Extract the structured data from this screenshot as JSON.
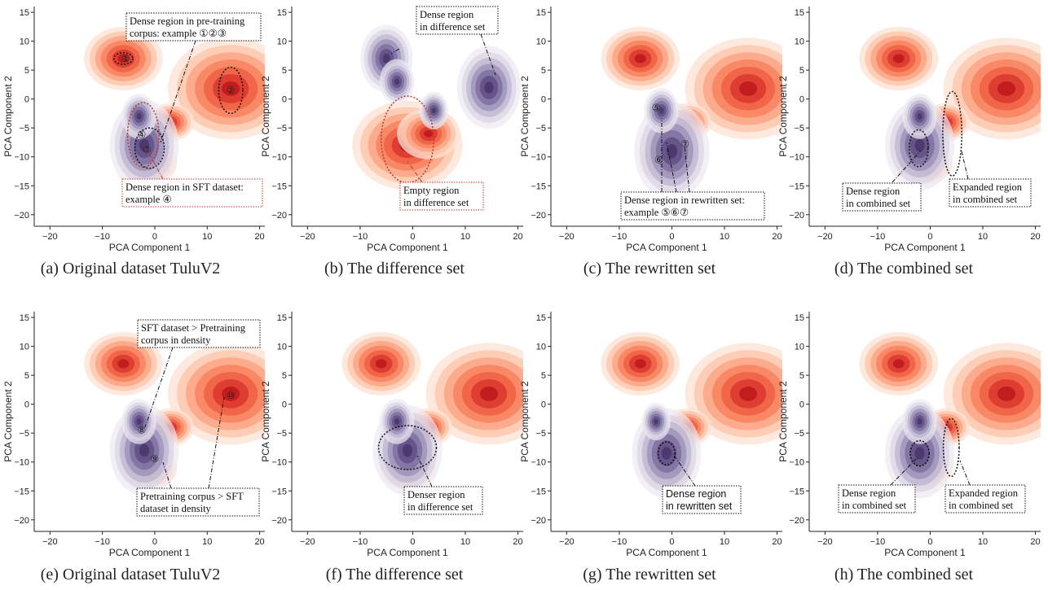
{
  "chart_data": [
    {
      "id": "a",
      "type": "contour",
      "caption": "(a) Original dataset TuluV2",
      "xlabel": "PCA Component 1",
      "ylabel": "PCA Component 2",
      "xlim": [
        -23,
        21
      ],
      "ylim": [
        -22,
        16
      ],
      "xticks": [
        -20,
        -10,
        0,
        10,
        20
      ],
      "yticks": [
        -20,
        -15,
        -10,
        -5,
        0,
        5,
        10,
        15
      ],
      "red_peaks": [
        [
          -6,
          7,
          1.0
        ],
        [
          14.5,
          1.8,
          1.6
        ],
        [
          3,
          -4,
          0.6
        ],
        [
          -1,
          -11,
          0.7
        ]
      ],
      "purple_peaks": [
        [
          -2,
          -8,
          1.2
        ],
        [
          -3,
          -3,
          0.6
        ]
      ],
      "markers": [
        {
          "label": "①",
          "x": -5.5,
          "y": 7
        },
        {
          "label": "②",
          "x": 14.5,
          "y": 1.5
        },
        {
          "label": "③",
          "x": -1.5,
          "y": -8.8
        },
        {
          "label": "④",
          "x": -2.5,
          "y": -6.2
        }
      ],
      "annotations": [
        {
          "lines": [
            "Dense region in pre-training",
            "corpus: example ①②③"
          ],
          "style": "dotted-black"
        },
        {
          "lines": [
            "Dense region in SFT dataset:",
            "example ④"
          ],
          "style": "dotted-red"
        }
      ]
    },
    {
      "id": "b",
      "type": "contour",
      "caption": "(b) The difference set",
      "xlabel": "PCA Component 1",
      "ylabel": "PCA Component 2",
      "xlim": [
        -23,
        21
      ],
      "ylim": [
        -22,
        16
      ],
      "xticks": [
        -20,
        -10,
        0,
        10,
        20
      ],
      "yticks": [
        -20,
        -15,
        -10,
        -5,
        0,
        5,
        10,
        15
      ],
      "red_peaks": [
        [
          -1,
          -8,
          1.4
        ],
        [
          3,
          -6,
          0.8
        ]
      ],
      "purple_peaks": [
        [
          -5,
          7,
          0.9
        ],
        [
          14.5,
          2,
          1.1
        ],
        [
          -3,
          3,
          0.6
        ],
        [
          4,
          -2,
          0.5
        ]
      ],
      "markers": [],
      "annotations": [
        {
          "lines": [
            "Dense region",
            "in difference set"
          ],
          "style": "dotted-black"
        },
        {
          "lines": [
            "Empty region",
            "in difference set"
          ],
          "style": "dotted-red"
        }
      ]
    },
    {
      "id": "c",
      "type": "contour",
      "caption": "(c) The rewritten set",
      "xlabel": "PCA Component 1",
      "ylabel": "PCA Component 2",
      "xlim": [
        -23,
        21
      ],
      "ylim": [
        -22,
        16
      ],
      "xticks": [
        -20,
        -10,
        0,
        10,
        20
      ],
      "yticks": [
        -20,
        -15,
        -10,
        -5,
        0,
        5,
        10,
        15
      ],
      "red_peaks": [
        [
          -6,
          7,
          1.0
        ],
        [
          14.5,
          1.8,
          1.6
        ],
        [
          3,
          -4,
          0.6
        ],
        [
          -1,
          -11,
          0.7
        ]
      ],
      "purple_peaks": [
        [
          0,
          -9,
          1.3
        ],
        [
          -2,
          -2,
          0.6
        ]
      ],
      "markers": [
        {
          "label": "⑤",
          "x": -3,
          "y": -1.5
        },
        {
          "label": "⑥",
          "x": -2.5,
          "y": -10.5
        },
        {
          "label": "⑦",
          "x": 2.5,
          "y": -7.8
        }
      ],
      "annotations": [
        {
          "lines": [
            "Dense region in rewritten set:",
            "example ⑤⑥⑦"
          ],
          "style": "dotted-black"
        }
      ]
    },
    {
      "id": "d",
      "type": "contour",
      "caption": "(d) The combined set",
      "xlabel": "PCA Component 1",
      "ylabel": "PCA Component 2",
      "xlim": [
        -23,
        21
      ],
      "ylim": [
        -22,
        16
      ],
      "xticks": [
        -20,
        -10,
        0,
        10,
        20
      ],
      "yticks": [
        -20,
        -15,
        -10,
        -5,
        0,
        5,
        10,
        15
      ],
      "red_peaks": [
        [
          -6,
          7,
          1.0
        ],
        [
          14.5,
          1.8,
          1.6
        ],
        [
          3,
          -4,
          0.6
        ],
        [
          -1,
          -11,
          0.7
        ]
      ],
      "purple_peaks": [
        [
          -2,
          -8,
          1.2
        ],
        [
          -2,
          -3,
          0.6
        ]
      ],
      "markers": [],
      "annotations": [
        {
          "lines": [
            "Dense region",
            "in combined set"
          ],
          "style": "dotted-black"
        },
        {
          "lines": [
            "Expanded region",
            "in combined set"
          ],
          "style": "dotted-black"
        }
      ]
    },
    {
      "id": "e",
      "type": "contour",
      "caption": "(e) Original dataset TuluV2",
      "xlabel": "PCA Component 1",
      "ylabel": "PCA Component 2",
      "xlim": [
        -23,
        21
      ],
      "ylim": [
        -22,
        16
      ],
      "xticks": [
        -20,
        -10,
        0,
        10,
        20
      ],
      "yticks": [
        -20,
        -15,
        -10,
        -5,
        0,
        5,
        10,
        15
      ],
      "red_peaks": [
        [
          -6,
          7,
          1.0
        ],
        [
          14.5,
          1.8,
          1.6
        ],
        [
          3,
          -4,
          0.6
        ],
        [
          -1,
          -11,
          0.7
        ]
      ],
      "purple_peaks": [
        [
          -2,
          -8,
          1.2
        ],
        [
          -3,
          -3,
          0.6
        ]
      ],
      "markers": [
        {
          "label": "⑧",
          "x": -2.5,
          "y": -4.5
        },
        {
          "label": "⑨",
          "x": 0,
          "y": -9.5
        },
        {
          "label": "⑩",
          "x": 14.5,
          "y": 1.5
        }
      ],
      "annotations": [
        {
          "lines": [
            "SFT dataset > Pretraining",
            "corpus in density"
          ],
          "style": "dotted-black"
        },
        {
          "lines": [
            "Pretraining corpus > SFT",
            "dataset in density"
          ],
          "style": "dotted-black"
        }
      ]
    },
    {
      "id": "f",
      "type": "contour",
      "caption": "(f) The difference set",
      "xlabel": "PCA Component 1",
      "ylabel": "PCA Component 2",
      "xlim": [
        -23,
        21
      ],
      "ylim": [
        -22,
        16
      ],
      "xticks": [
        -20,
        -10,
        0,
        10,
        20
      ],
      "yticks": [
        -20,
        -15,
        -10,
        -5,
        0,
        5,
        10,
        15
      ],
      "red_peaks": [
        [
          -6,
          7,
          1.0
        ],
        [
          14.5,
          1.8,
          1.6
        ],
        [
          3,
          -4,
          0.6
        ],
        [
          -1,
          -11,
          0.7
        ]
      ],
      "purple_peaks": [
        [
          -1,
          -8,
          1.2
        ],
        [
          -3,
          -3,
          0.6
        ]
      ],
      "markers": [],
      "annotations": [
        {
          "lines": [
            "Denser region",
            "in difference set"
          ],
          "style": "dotted-black"
        }
      ]
    },
    {
      "id": "g",
      "type": "contour",
      "caption": "(g) The rewritten set",
      "xlabel": "PCA Component 1",
      "ylabel": "PCA Component 2",
      "xlim": [
        -23,
        21
      ],
      "ylim": [
        -22,
        16
      ],
      "xticks": [
        -20,
        -10,
        0,
        10,
        20
      ],
      "yticks": [
        -20,
        -15,
        -10,
        -5,
        0,
        5,
        10,
        15
      ],
      "red_peaks": [
        [
          -6,
          7,
          1.0
        ],
        [
          14.5,
          1.8,
          1.6
        ],
        [
          3,
          -4,
          0.6
        ],
        [
          -1,
          -11,
          0.7
        ]
      ],
      "purple_peaks": [
        [
          -1,
          -8.5,
          1.2
        ],
        [
          -3,
          -3,
          0.5
        ]
      ],
      "markers": [],
      "annotations": [
        {
          "lines": [
            "Dense region",
            "in rewritten set"
          ],
          "style": "dotted-black-sans"
        }
      ]
    },
    {
      "id": "h",
      "type": "contour",
      "caption": "(h) The combined set",
      "xlabel": "PCA Component 1",
      "ylabel": "PCA Component 2",
      "xlim": [
        -23,
        21
      ],
      "ylim": [
        -22,
        16
      ],
      "xticks": [
        -20,
        -10,
        0,
        10,
        20
      ],
      "yticks": [
        -20,
        -15,
        -10,
        -5,
        0,
        5,
        10,
        15
      ],
      "red_peaks": [
        [
          -6,
          7,
          1.0
        ],
        [
          14.5,
          1.8,
          1.6
        ],
        [
          3,
          -4,
          0.6
        ],
        [
          -1,
          -11,
          0.7
        ]
      ],
      "purple_peaks": [
        [
          -2,
          -8.5,
          1.2
        ],
        [
          -2,
          -3,
          0.6
        ]
      ],
      "markers": [],
      "annotations": [
        {
          "lines": [
            "Dense region",
            "in combined set"
          ],
          "style": "dotted-black"
        },
        {
          "lines": [
            "Expanded region",
            "in combined set"
          ],
          "style": "dotted-black"
        }
      ]
    }
  ],
  "colors": {
    "red_scale": [
      "#fde2d3",
      "#fcc3a8",
      "#fba07e",
      "#f87d5a",
      "#ee5a3f",
      "#d7322a",
      "#b71318"
    ],
    "purple_scale": [
      "#eceaf2",
      "#d8d4e4",
      "#b9b2cf",
      "#968bb5",
      "#76669a",
      "#5a4780",
      "#452d63"
    ],
    "annotation_red": "#c0392b"
  }
}
